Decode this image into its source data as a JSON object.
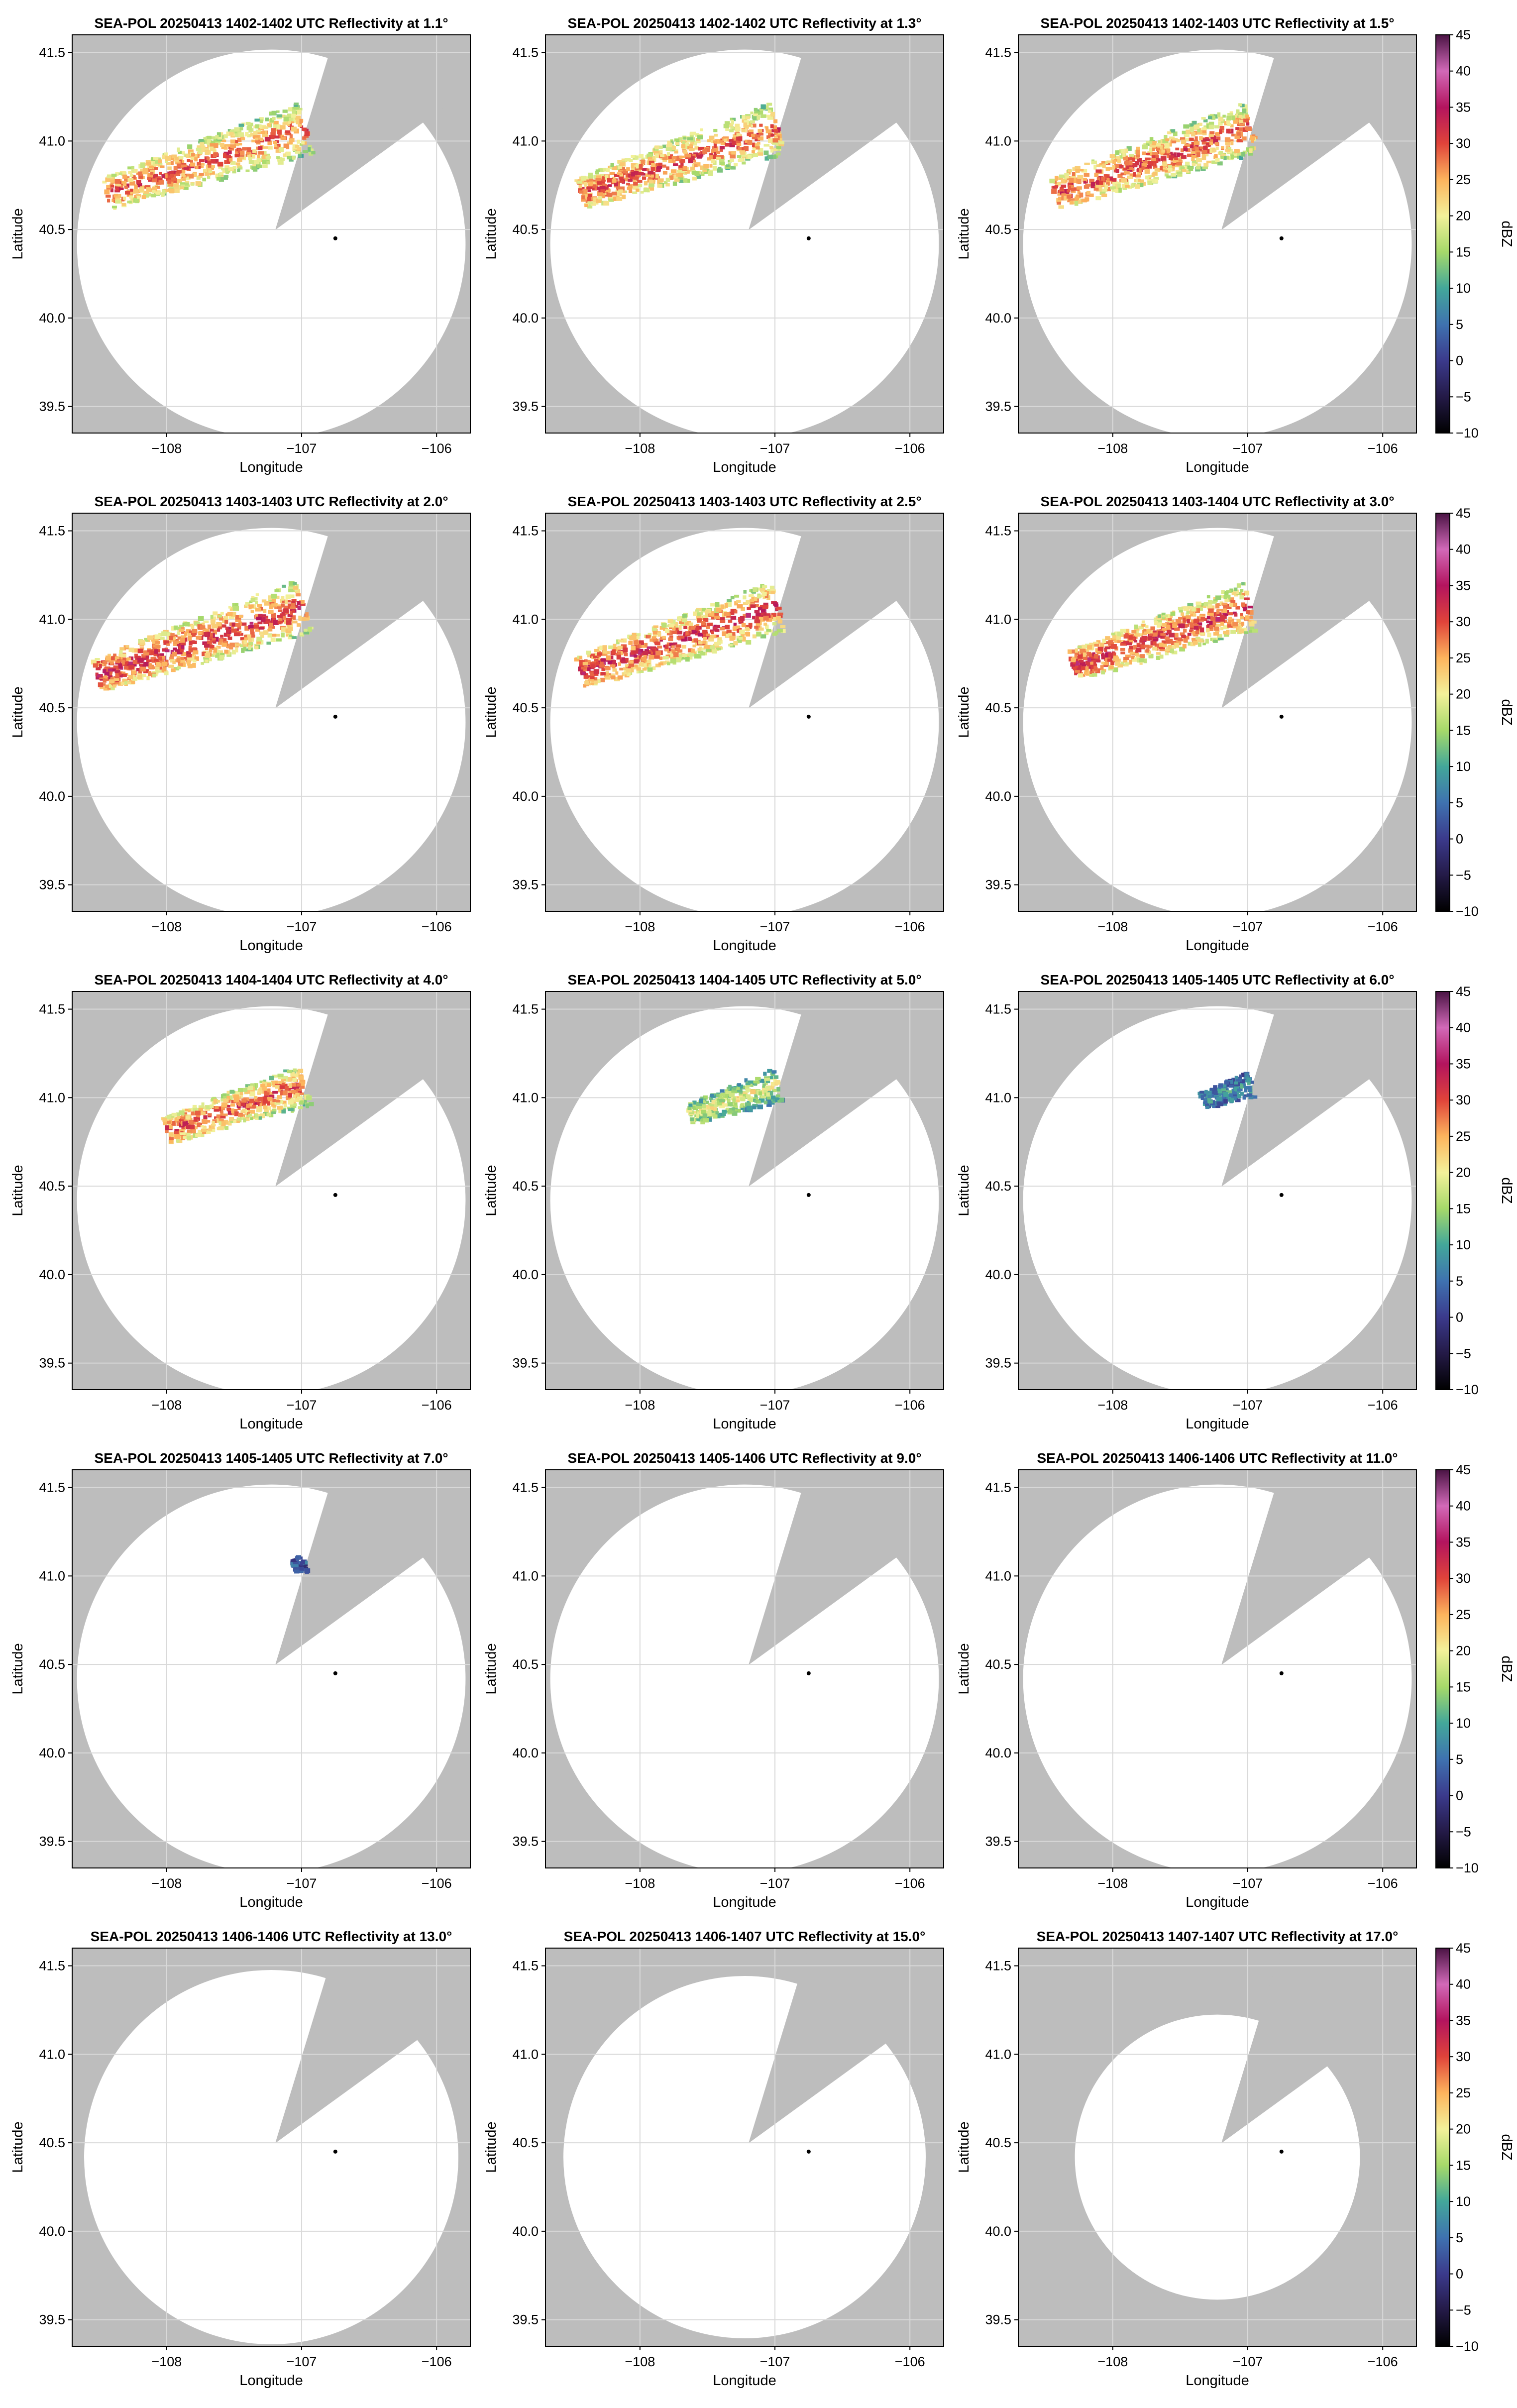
{
  "figure": {
    "style": {
      "missing_data_color": "#bdbdbd",
      "range_disk_color": "#ffffff",
      "axes_edge_color": "#000000",
      "grid_color": "#d9d9d9",
      "radar_marker_color": "#000000"
    }
  },
  "colorbar": {
    "label": "dBZ",
    "ticks": [
      "45",
      "40",
      "35",
      "30",
      "25",
      "20",
      "15",
      "10",
      "5",
      "0",
      "−5",
      "−10"
    ],
    "range": [
      -10,
      45
    ],
    "colormap_stops": [
      {
        "value": -10,
        "color": "#000000"
      },
      {
        "value": -5,
        "color": "#241a47"
      },
      {
        "value": 0,
        "color": "#3b3a8c"
      },
      {
        "value": 5,
        "color": "#3f72b0"
      },
      {
        "value": 10,
        "color": "#43a79a"
      },
      {
        "value": 15,
        "color": "#a6d96a"
      },
      {
        "value": 20,
        "color": "#f3f19a"
      },
      {
        "value": 25,
        "color": "#fdb45d"
      },
      {
        "value": 30,
        "color": "#e0433a"
      },
      {
        "value": 35,
        "color": "#b3145e"
      },
      {
        "value": 40,
        "color": "#d269b8"
      },
      {
        "value": 45,
        "color": "#4a1344"
      }
    ]
  },
  "chart_data": [
    {
      "type": "heatmap",
      "title": "SEA-POL 20250413 1402-1402 UTC Reflectivity at 1.1°",
      "xlabel": "Longitude",
      "ylabel": "Latitude",
      "xticks": [
        "−108",
        "−107",
        "−106"
      ],
      "yticks": [
        "41.5",
        "41.0",
        "40.5",
        "40.0",
        "39.5"
      ],
      "xlim": [
        -108.7,
        -105.75
      ],
      "ylim": [
        39.35,
        41.6
      ],
      "radar_location": [
        -106.75,
        40.45
      ],
      "echo": {
        "extent": 1.0,
        "peak_dbz": 35
      }
    },
    {
      "type": "heatmap",
      "title": "SEA-POL 20250413 1402-1402 UTC Reflectivity at 1.3°",
      "xlabel": "Longitude",
      "ylabel": "Latitude",
      "xticks": [
        "−108",
        "−107",
        "−106"
      ],
      "yticks": [
        "41.5",
        "41.0",
        "40.5",
        "40.0",
        "39.5"
      ],
      "xlim": [
        -108.7,
        -105.75
      ],
      "ylim": [
        39.35,
        41.6
      ],
      "radar_location": [
        -106.75,
        40.45
      ],
      "echo": {
        "extent": 1.0,
        "peak_dbz": 35
      }
    },
    {
      "type": "heatmap",
      "title": "SEA-POL 20250413 1402-1403 UTC Reflectivity at 1.5°",
      "xlabel": "Longitude",
      "ylabel": "Latitude",
      "xticks": [
        "−108",
        "−107",
        "−106"
      ],
      "yticks": [
        "41.5",
        "41.0",
        "40.5",
        "40.0",
        "39.5"
      ],
      "xlim": [
        -108.7,
        -105.75
      ],
      "ylim": [
        39.35,
        41.6
      ],
      "radar_location": [
        -106.75,
        40.45
      ],
      "echo": {
        "extent": 1.0,
        "peak_dbz": 36
      }
    },
    {
      "type": "heatmap",
      "title": "SEA-POL 20250413 1403-1403 UTC Reflectivity at 2.0°",
      "xlabel": "Longitude",
      "ylabel": "Latitude",
      "xticks": [
        "−108",
        "−107",
        "−106"
      ],
      "yticks": [
        "41.5",
        "41.0",
        "40.5",
        "40.0",
        "39.5"
      ],
      "xlim": [
        -108.7,
        -105.75
      ],
      "ylim": [
        39.35,
        41.6
      ],
      "radar_location": [
        -106.75,
        40.45
      ],
      "echo": {
        "extent": 1.1,
        "peak_dbz": 38
      }
    },
    {
      "type": "heatmap",
      "title": "SEA-POL 20250413 1403-1403 UTC Reflectivity at 2.5°",
      "xlabel": "Longitude",
      "ylabel": "Latitude",
      "xticks": [
        "−108",
        "−107",
        "−106"
      ],
      "yticks": [
        "41.5",
        "41.0",
        "40.5",
        "40.0",
        "39.5"
      ],
      "xlim": [
        -108.7,
        -105.75
      ],
      "ylim": [
        39.35,
        41.6
      ],
      "radar_location": [
        -106.75,
        40.45
      ],
      "echo": {
        "extent": 1.0,
        "peak_dbz": 38
      }
    },
    {
      "type": "heatmap",
      "title": "SEA-POL 20250413 1403-1404 UTC Reflectivity at 3.0°",
      "xlabel": "Longitude",
      "ylabel": "Latitude",
      "xticks": [
        "−108",
        "−107",
        "−106"
      ],
      "yticks": [
        "41.5",
        "41.0",
        "40.5",
        "40.0",
        "39.5"
      ],
      "xlim": [
        -108.7,
        -105.75
      ],
      "ylim": [
        39.35,
        41.6
      ],
      "radar_location": [
        -106.75,
        40.45
      ],
      "echo": {
        "extent": 0.9,
        "peak_dbz": 38
      }
    },
    {
      "type": "heatmap",
      "title": "SEA-POL 20250413 1404-1404 UTC Reflectivity at 4.0°",
      "xlabel": "Longitude",
      "ylabel": "Latitude",
      "xticks": [
        "−108",
        "−107",
        "−106"
      ],
      "yticks": [
        "41.5",
        "41.0",
        "40.5",
        "40.0",
        "39.5"
      ],
      "xlim": [
        -108.7,
        -105.75
      ],
      "ylim": [
        39.35,
        41.6
      ],
      "radar_location": [
        -106.75,
        40.45
      ],
      "echo": {
        "extent": 0.7,
        "peak_dbz": 36
      }
    },
    {
      "type": "heatmap",
      "title": "SEA-POL 20250413 1404-1405 UTC Reflectivity at 5.0°",
      "xlabel": "Longitude",
      "ylabel": "Latitude",
      "xticks": [
        "−108",
        "−107",
        "−106"
      ],
      "yticks": [
        "41.5",
        "41.0",
        "40.5",
        "40.0",
        "39.5"
      ],
      "xlim": [
        -108.7,
        -105.75
      ],
      "ylim": [
        39.35,
        41.6
      ],
      "radar_location": [
        -106.75,
        40.45
      ],
      "echo": {
        "extent": 0.45,
        "peak_dbz": 25
      }
    },
    {
      "type": "heatmap",
      "title": "SEA-POL 20250413 1405-1405 UTC Reflectivity at 6.0°",
      "xlabel": "Longitude",
      "ylabel": "Latitude",
      "xticks": [
        "−108",
        "−107",
        "−106"
      ],
      "yticks": [
        "41.5",
        "41.0",
        "40.5",
        "40.0",
        "39.5"
      ],
      "xlim": [
        -108.7,
        -105.75
      ],
      "ylim": [
        39.35,
        41.6
      ],
      "radar_location": [
        -106.75,
        40.45
      ],
      "echo": {
        "extent": 0.25,
        "peak_dbz": 14
      }
    },
    {
      "type": "heatmap",
      "title": "SEA-POL 20250413 1405-1405 UTC Reflectivity at 7.0°",
      "xlabel": "Longitude",
      "ylabel": "Latitude",
      "xticks": [
        "−108",
        "−107",
        "−106"
      ],
      "yticks": [
        "41.5",
        "41.0",
        "40.5",
        "40.0",
        "39.5"
      ],
      "xlim": [
        -108.7,
        -105.75
      ],
      "ylim": [
        39.35,
        41.6
      ],
      "radar_location": [
        -106.75,
        40.45
      ],
      "echo": {
        "extent": 0.06,
        "peak_dbz": 8
      }
    },
    {
      "type": "heatmap",
      "title": "SEA-POL 20250413 1405-1406 UTC Reflectivity at 9.0°",
      "xlabel": "Longitude",
      "ylabel": "Latitude",
      "xticks": [
        "−108",
        "−107",
        "−106"
      ],
      "yticks": [
        "41.5",
        "41.0",
        "40.5",
        "40.0",
        "39.5"
      ],
      "xlim": [
        -108.7,
        -105.75
      ],
      "ylim": [
        39.35,
        41.6
      ],
      "radar_location": [
        -106.75,
        40.45
      ],
      "echo": {
        "extent": 0,
        "peak_dbz": null
      }
    },
    {
      "type": "heatmap",
      "title": "SEA-POL 20250413 1406-1406 UTC Reflectivity at 11.0°",
      "xlabel": "Longitude",
      "ylabel": "Latitude",
      "xticks": [
        "−108",
        "−107",
        "−106"
      ],
      "yticks": [
        "41.5",
        "41.0",
        "40.5",
        "40.0",
        "39.5"
      ],
      "xlim": [
        -108.7,
        -105.75
      ],
      "ylim": [
        39.35,
        41.6
      ],
      "radar_location": [
        -106.75,
        40.45
      ],
      "echo": {
        "extent": 0,
        "peak_dbz": null
      }
    },
    {
      "type": "heatmap",
      "title": "SEA-POL 20250413 1406-1406 UTC Reflectivity at 13.0°",
      "xlabel": "Longitude",
      "ylabel": "Latitude",
      "xticks": [
        "−108",
        "−107",
        "−106"
      ],
      "yticks": [
        "41.5",
        "41.0",
        "40.5",
        "40.0",
        "39.5"
      ],
      "xlim": [
        -108.7,
        -105.75
      ],
      "ylim": [
        39.35,
        41.6
      ],
      "radar_location": [
        -106.75,
        40.45
      ],
      "echo": {
        "extent": 0,
        "peak_dbz": null
      }
    },
    {
      "type": "heatmap",
      "title": "SEA-POL 20250413 1406-1407 UTC Reflectivity at 15.0°",
      "xlabel": "Longitude",
      "ylabel": "Latitude",
      "xticks": [
        "−108",
        "−107",
        "−106"
      ],
      "yticks": [
        "41.5",
        "41.0",
        "40.5",
        "40.0",
        "39.5"
      ],
      "xlim": [
        -108.7,
        -105.75
      ],
      "ylim": [
        39.35,
        41.6
      ],
      "radar_location": [
        -106.75,
        40.45
      ],
      "echo": {
        "extent": 0,
        "peak_dbz": null
      }
    },
    {
      "type": "heatmap",
      "title": "SEA-POL 20250413 1407-1407 UTC Reflectivity at 17.0°",
      "xlabel": "Longitude",
      "ylabel": "Latitude",
      "xticks": [
        "−108",
        "−107",
        "−106"
      ],
      "yticks": [
        "41.5",
        "41.0",
        "40.5",
        "40.0",
        "39.5"
      ],
      "xlim": [
        -108.7,
        -105.75
      ],
      "ylim": [
        39.35,
        41.6
      ],
      "radar_location": [
        -106.75,
        40.45
      ],
      "echo": {
        "extent": 0,
        "peak_dbz": null
      }
    }
  ]
}
